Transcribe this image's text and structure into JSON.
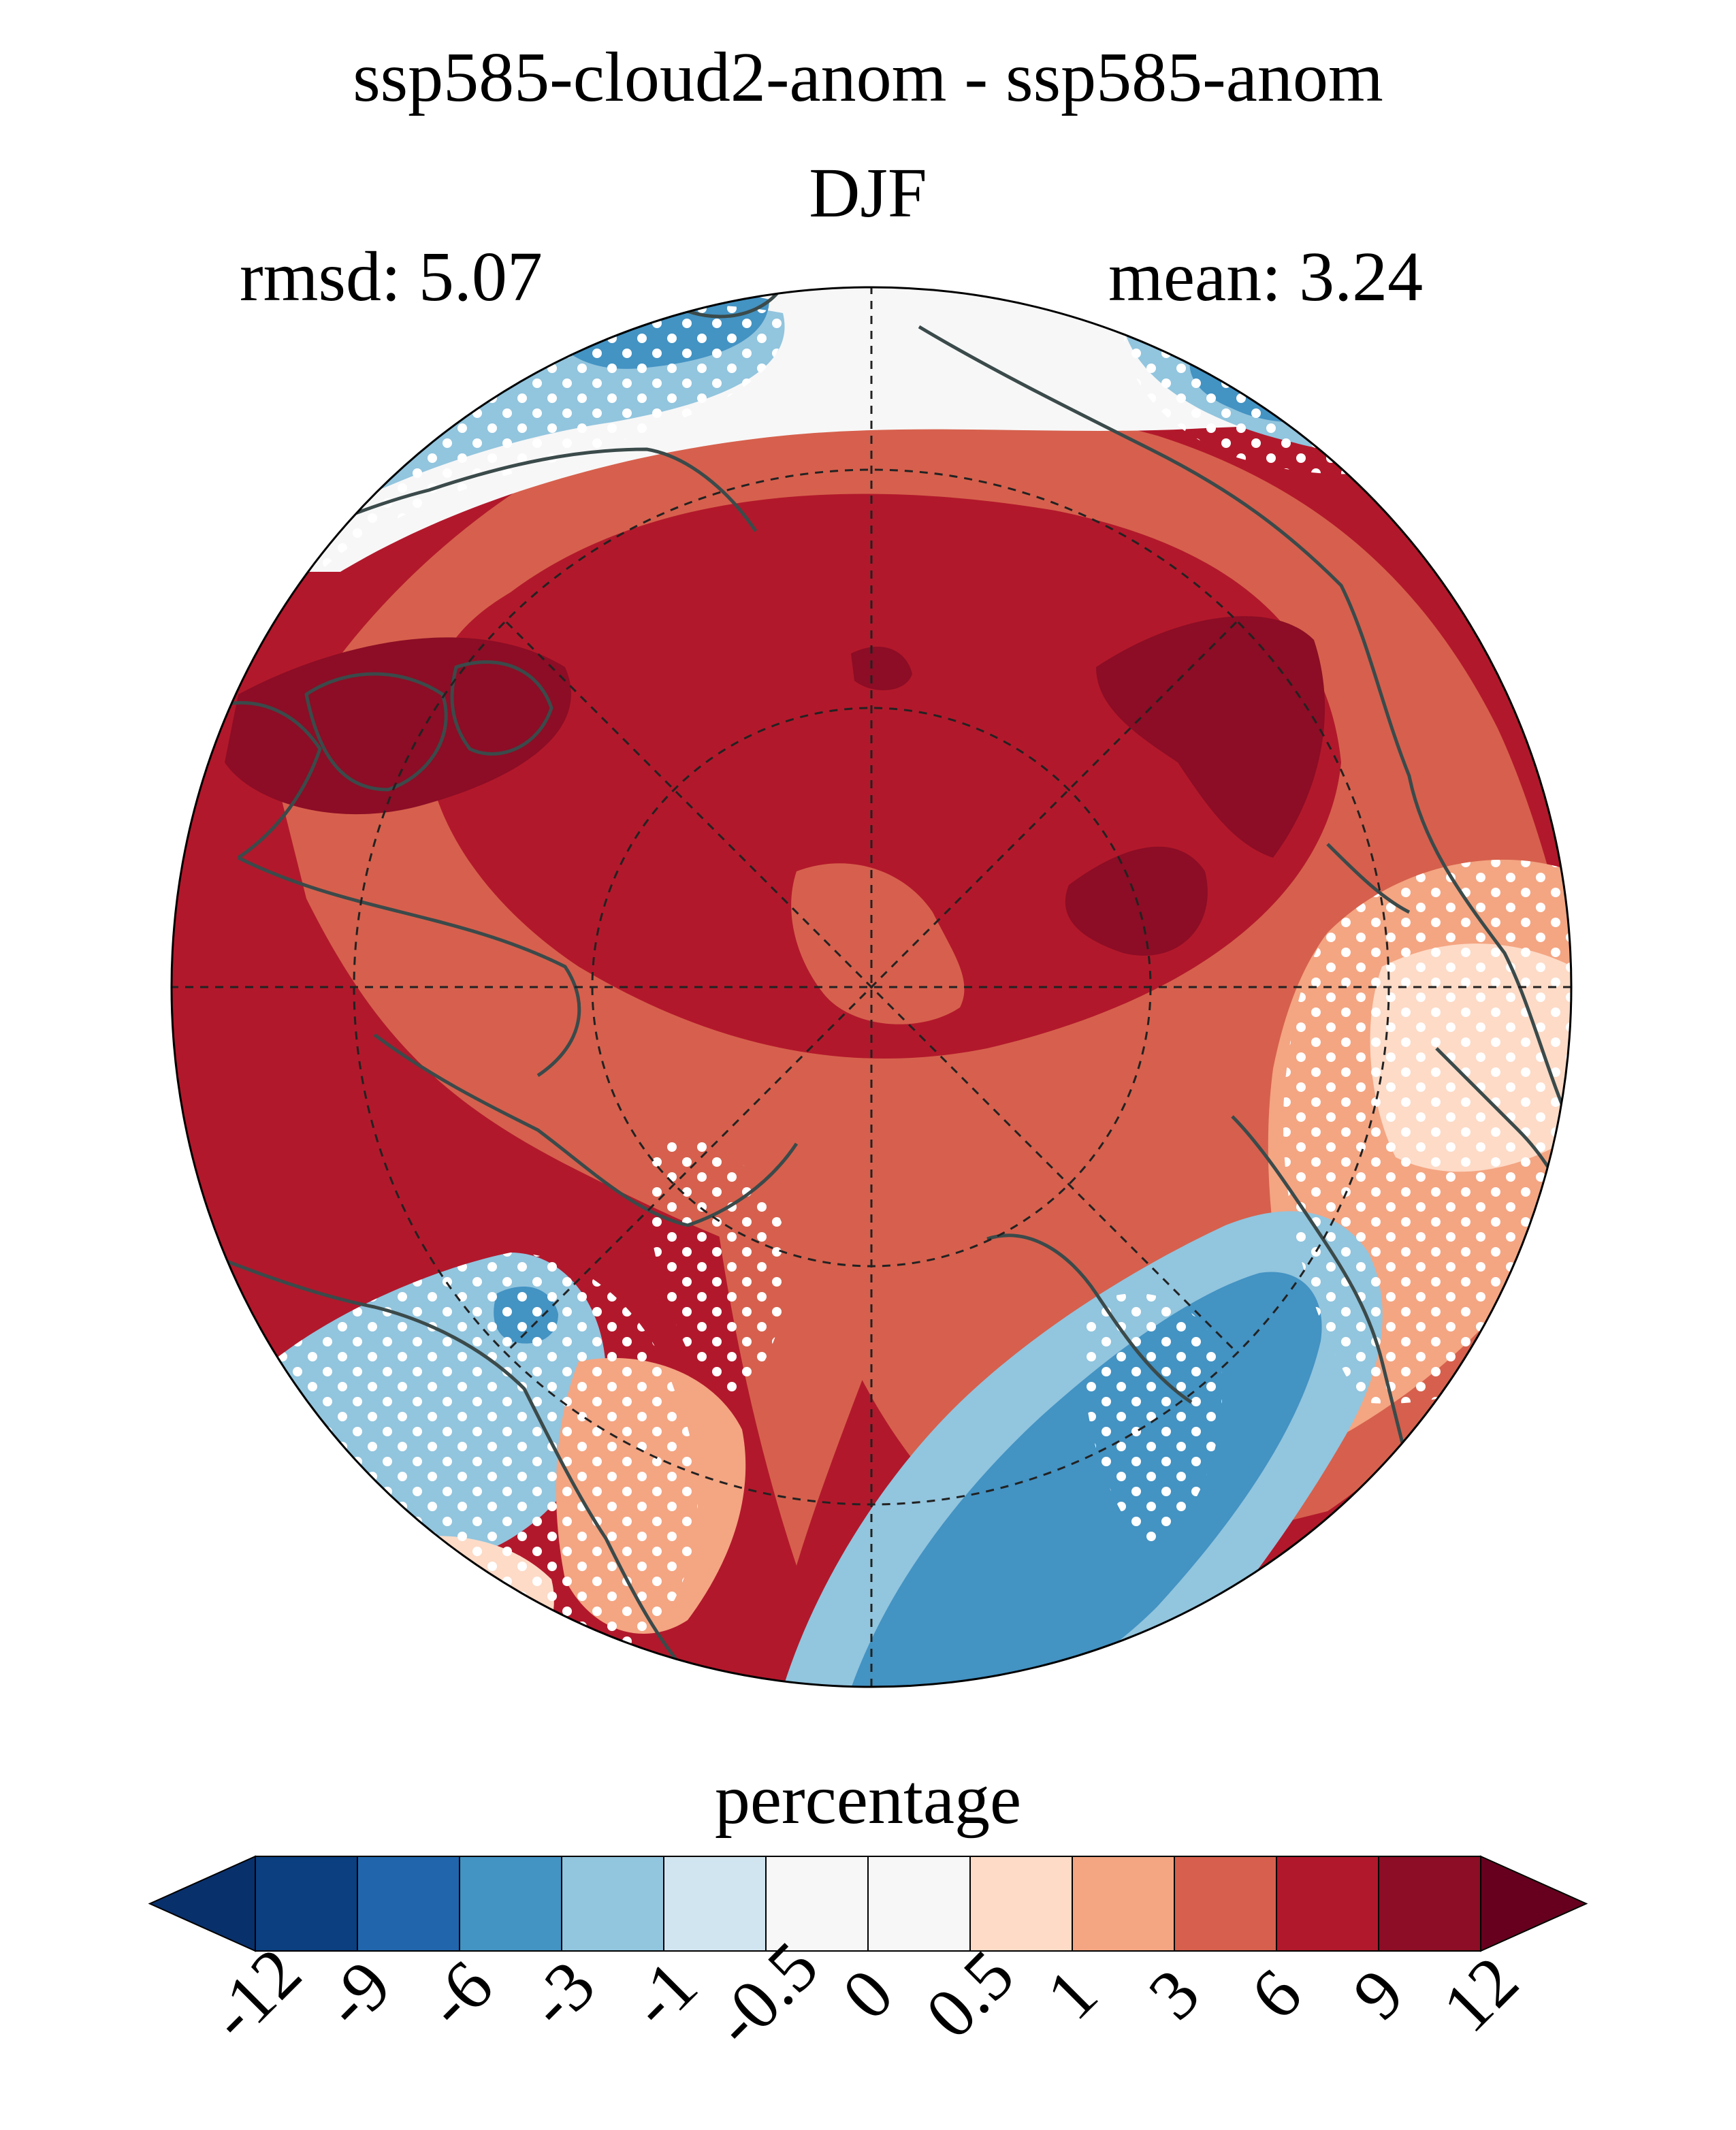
{
  "title": "ssp585-cloud2-anom - ssp585-anom",
  "season": "DJF",
  "rmsd": "rmsd: 5.07",
  "mean": "mean: 3.24",
  "map": {
    "projection": "north-polar-stereographic",
    "gridlines": "dashed",
    "coastlines": true,
    "stippling": "white dots"
  },
  "colorbar": {
    "label": "percentage",
    "extend": "both",
    "ticks": [
      "-12",
      "-9",
      "-6",
      "-3",
      "-1",
      "-0.5",
      "0",
      "0.5",
      "1",
      "3",
      "6",
      "9",
      "12"
    ],
    "colors": [
      "#08306b",
      "#0b3f7f",
      "#2166ac",
      "#4393c3",
      "#92c5de",
      "#d1e5f0",
      "#f7f7f7",
      "#f7f7f7",
      "#fddbc7",
      "#f4a582",
      "#d6604d",
      "#b2182b",
      "#8c0d25",
      "#67001f"
    ]
  }
}
